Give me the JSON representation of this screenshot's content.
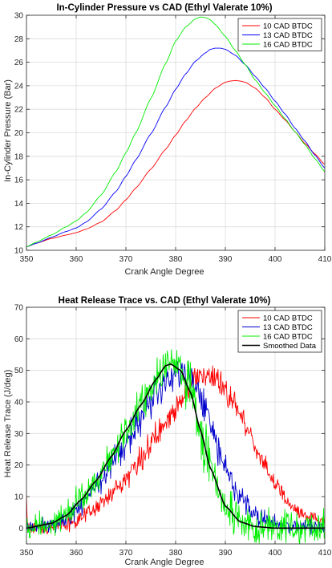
{
  "chart_data": [
    {
      "type": "line",
      "title": "In-Cylinder Pressure vs CAD (Ethyl Valerate 10%)",
      "xlabel": "Crank Angle Degree",
      "ylabel": "In-Cylinder Pressure (Bar)",
      "xlim": [
        350,
        410
      ],
      "ylim": [
        10,
        30
      ],
      "xticks": [
        350,
        360,
        370,
        380,
        390,
        400,
        410
      ],
      "yticks": [
        10,
        12,
        14,
        16,
        18,
        20,
        22,
        24,
        26,
        28,
        30
      ],
      "grid": true,
      "legend_position": "top-right",
      "series": [
        {
          "name": "10 CAD BTDC",
          "color": "#ff0000",
          "x": [
            350,
            352,
            355,
            358,
            360,
            362,
            365,
            368,
            370,
            372,
            375,
            378,
            380,
            382,
            384,
            386,
            388,
            390,
            391,
            392,
            393,
            394,
            396,
            398,
            400,
            402,
            404,
            406,
            408,
            410
          ],
          "y": [
            10.3,
            10.6,
            11.0,
            11.3,
            11.5,
            11.8,
            12.4,
            13.4,
            14.3,
            15.3,
            16.9,
            18.6,
            19.8,
            21.0,
            22.1,
            23.0,
            23.8,
            24.3,
            24.4,
            24.45,
            24.4,
            24.3,
            23.8,
            23.0,
            22.0,
            21.1,
            20.1,
            19.1,
            18.2,
            17.3
          ]
        },
        {
          "name": "13 CAD BTDC",
          "color": "#0000ff",
          "x": [
            350,
            352,
            355,
            358,
            360,
            362,
            365,
            368,
            370,
            372,
            375,
            378,
            380,
            382,
            384,
            386,
            387,
            388,
            389,
            390,
            392,
            394,
            396,
            398,
            400,
            402,
            404,
            406,
            408,
            410
          ],
          "y": [
            10.3,
            10.6,
            11.1,
            11.6,
            11.9,
            12.4,
            13.5,
            15.0,
            16.3,
            17.7,
            19.9,
            22.2,
            23.7,
            25.0,
            26.1,
            26.8,
            27.1,
            27.2,
            27.2,
            27.1,
            26.6,
            25.8,
            24.8,
            23.8,
            22.7,
            21.6,
            20.4,
            19.3,
            18.1,
            17.0
          ]
        },
        {
          "name": "16 CAD BTDC",
          "color": "#00ee00",
          "x": [
            350,
            352,
            355,
            358,
            360,
            362,
            365,
            368,
            370,
            372,
            375,
            378,
            380,
            382,
            384,
            385,
            386,
            387,
            388,
            390,
            392,
            394,
            396,
            398,
            400,
            402,
            404,
            406,
            408,
            410
          ],
          "y": [
            10.3,
            10.7,
            11.3,
            12.0,
            12.5,
            13.2,
            14.7,
            16.7,
            18.3,
            20.0,
            22.9,
            25.9,
            27.8,
            29.0,
            29.7,
            29.85,
            29.8,
            29.6,
            29.2,
            28.2,
            27.0,
            25.8,
            24.5,
            23.4,
            22.3,
            21.2,
            20.1,
            19.0,
            17.8,
            16.7
          ]
        }
      ]
    },
    {
      "type": "line",
      "title": "Heat Release Trace vs. CAD (Ethyl Valerate 10%)",
      "xlabel": "Crank Angle Degree",
      "ylabel": "Heat Release Trace (J/deg)",
      "xlim": [
        350,
        410
      ],
      "ylim": [
        -5,
        70
      ],
      "xticks": [
        350,
        360,
        370,
        380,
        390,
        400,
        410
      ],
      "yticks": [
        0,
        10,
        20,
        30,
        40,
        50,
        60,
        70
      ],
      "grid": true,
      "legend_position": "top-right",
      "series": [
        {
          "name": "10 CAD BTDC",
          "color": "#ff0000",
          "noise": 1.7,
          "x": [
            350,
            355,
            360,
            363,
            366,
            369,
            372,
            375,
            378,
            381,
            383,
            385,
            386,
            388,
            391,
            394,
            397,
            400,
            403,
            406,
            410
          ],
          "y": [
            0,
            0.5,
            2,
            5,
            9,
            14,
            20,
            26.5,
            33,
            41,
            46,
            48.5,
            48.6,
            47,
            41.5,
            33,
            23,
            14,
            7,
            3.5,
            2
          ]
        },
        {
          "name": "13 CAD BTDC",
          "color": "#0000cc",
          "noise": 2.1,
          "x": [
            350,
            355,
            358,
            361,
            364,
            367,
            370,
            373,
            376,
            379,
            380,
            382,
            384,
            386,
            388,
            390,
            393,
            396,
            400,
            404,
            410
          ],
          "y": [
            0,
            1,
            3,
            7,
            13,
            20,
            27,
            34,
            42,
            48.5,
            49.5,
            48.5,
            44,
            37,
            28,
            19,
            9.5,
            4,
            1.5,
            0.5,
            0
          ]
        },
        {
          "name": "16 CAD BTDC",
          "color": "#00ee00",
          "noise": 2.7,
          "x": [
            350,
            355,
            358,
            361,
            364,
            367,
            370,
            373,
            376,
            378,
            379,
            381,
            383,
            385,
            387,
            390,
            393,
            396,
            400,
            405,
            410
          ],
          "y": [
            0,
            1.5,
            4,
            9,
            15,
            22.5,
            31,
            39,
            47,
            51.5,
            52,
            50,
            43,
            31,
            19,
            7,
            2,
            0.5,
            0,
            0,
            0
          ]
        },
        {
          "name": "Smoothed Data",
          "color": "#000000",
          "width": 1.6,
          "x": [
            350,
            355,
            358,
            361,
            364,
            367,
            370,
            373,
            376,
            378,
            379,
            381,
            383,
            385,
            387,
            390,
            393,
            396,
            400,
            405,
            410
          ],
          "y": [
            0,
            1.5,
            4,
            9,
            15,
            22.5,
            31,
            39,
            47,
            51.5,
            52,
            50,
            43,
            31,
            19,
            7,
            2,
            0.5,
            0,
            0,
            0
          ]
        }
      ]
    }
  ]
}
